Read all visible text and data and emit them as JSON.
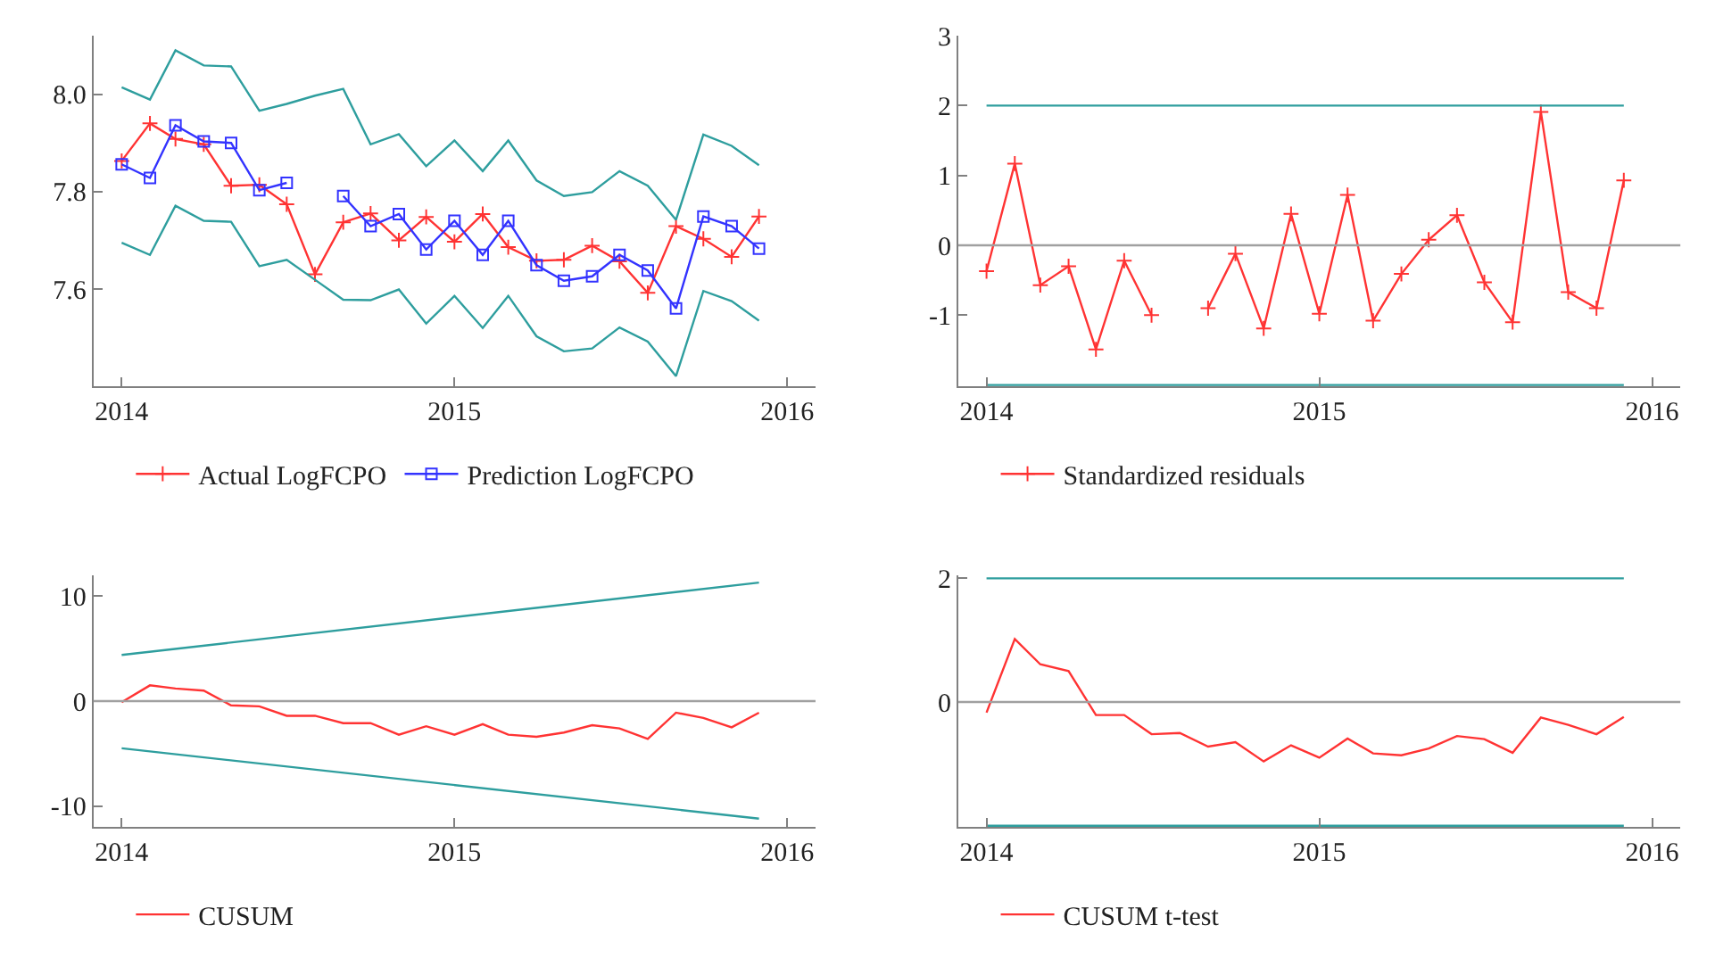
{
  "chart_data": [
    {
      "type": "line",
      "x": [
        "2014-01",
        "2014-02",
        "2014-03",
        "2014-04",
        "2014-05",
        "2014-06",
        "2014-07",
        "2014-08",
        "2014-09",
        "2014-10",
        "2014-11",
        "2014-12",
        "2015-01",
        "2015-02",
        "2015-03",
        "2015-04",
        "2015-05",
        "2015-06",
        "2015-07",
        "2015-08",
        "2015-09",
        "2015-10",
        "2015-11",
        "2015-12"
      ],
      "series": [
        {
          "name": "Actual LogFCPO",
          "color": "#ff3333",
          "marker": "cross",
          "values": [
            7.863,
            7.94,
            7.908,
            7.897,
            7.812,
            7.814,
            7.774,
            7.63,
            7.737,
            7.755,
            7.7,
            7.748,
            7.697,
            7.754,
            7.686,
            7.658,
            7.66,
            7.689,
            7.657,
            7.592,
            7.729,
            7.703,
            7.666,
            7.749
          ]
        },
        {
          "name": "Prediction LogFCPO",
          "color": "#3333ff",
          "marker": "square",
          "values": [
            7.856,
            7.828,
            7.936,
            7.903,
            7.9,
            7.803,
            7.818,
            null,
            7.791,
            7.729,
            7.754,
            7.681,
            7.74,
            7.67,
            7.74,
            7.649,
            7.617,
            7.626,
            7.67,
            7.638,
            7.56,
            7.749,
            7.729,
            7.683
          ]
        },
        {
          "color": "#2e9e9e",
          "values": [
            8.014,
            7.989,
            8.09,
            8.059,
            8.057,
            7.966,
            7.98,
            7.997,
            8.011,
            7.897,
            7.918,
            7.852,
            7.905,
            7.842,
            7.905,
            7.823,
            7.791,
            7.799,
            7.842,
            7.812,
            7.742,
            7.917,
            7.894,
            7.854
          ]
        },
        {
          "color": "#2e9e9e",
          "values": [
            7.695,
            7.67,
            7.771,
            7.74,
            7.738,
            7.647,
            7.66,
            7.619,
            7.578,
            7.577,
            7.599,
            7.529,
            7.586,
            7.52,
            7.586,
            7.503,
            7.472,
            7.478,
            7.521,
            7.492,
            7.421,
            7.596,
            7.575,
            7.535
          ]
        }
      ],
      "xlim": [
        "2013-12",
        "2016-02"
      ],
      "xticks": [
        "2014",
        "2015",
        "2016"
      ],
      "ylim": [
        7.4,
        8.12
      ],
      "yticks": [
        7.6,
        7.8,
        {
          "value": 8,
          "label": "8.0"
        }
      ],
      "legend": "bottom"
    },
    {
      "type": "line",
      "x": [
        "2014-01",
        "2014-02",
        "2014-03",
        "2014-04",
        "2014-05",
        "2014-06",
        "2014-07",
        "2014-08",
        "2014-09",
        "2014-10",
        "2014-11",
        "2014-12",
        "2015-01",
        "2015-02",
        "2015-03",
        "2015-04",
        "2015-05",
        "2015-06",
        "2015-07",
        "2015-08",
        "2015-09",
        "2015-10",
        "2015-11",
        "2015-12"
      ],
      "series": [
        {
          "name": "Standardized residuals",
          "color": "#ff3333",
          "marker": "cross",
          "values": [
            -0.37,
            1.17,
            -0.57,
            -0.3,
            -1.49,
            -0.22,
            -1.0,
            null,
            -0.9,
            -0.12,
            -1.19,
            0.45,
            -0.98,
            0.72,
            -1.08,
            -0.41,
            0.08,
            0.43,
            -0.53,
            -1.1,
            1.91,
            -0.67,
            -0.9,
            0.93
          ]
        },
        {
          "color": "#2e9e9e",
          "x": [
            "2014-01",
            "2015-12"
          ],
          "values": [
            2,
            2
          ]
        },
        {
          "color": "#2e9e9e",
          "x": [
            "2014-01",
            "2015-12"
          ],
          "values": [
            -2,
            -2
          ]
        }
      ],
      "ref_lines": [
        {
          "axis": "y",
          "value": 0,
          "color": "#a0a0a0"
        }
      ],
      "xlim": [
        "2013-12",
        "2016-02"
      ],
      "xticks": [
        "2014",
        "2015",
        "2016"
      ],
      "ylim": [
        -2.02,
        3
      ],
      "yticks": [
        -1,
        0,
        1,
        2,
        3
      ],
      "legend": "bottom"
    },
    {
      "type": "line",
      "x": [
        "2014-01",
        "2014-02",
        "2014-03",
        "2014-04",
        "2014-05",
        "2014-06",
        "2014-07",
        "2014-08",
        "2014-09",
        "2014-10",
        "2014-11",
        "2014-12",
        "2015-01",
        "2015-02",
        "2015-03",
        "2015-04",
        "2015-05",
        "2015-06",
        "2015-07",
        "2015-08",
        "2015-09",
        "2015-10",
        "2015-11",
        "2015-12"
      ],
      "series": [
        {
          "name": "CUSUM",
          "color": "#ff3333",
          "marker": "none",
          "values": [
            -0.1,
            1.5,
            1.2,
            1.0,
            -0.4,
            -0.5,
            -1.4,
            -1.4,
            -2.1,
            -2.1,
            -3.2,
            -2.4,
            -3.2,
            -2.2,
            -3.2,
            -3.4,
            -3.0,
            -2.3,
            -2.6,
            -3.6,
            -1.1,
            -1.6,
            -2.5,
            -1.1
          ]
        },
        {
          "color": "#2e9e9e",
          "x": [
            "2014-01",
            "2015-12"
          ],
          "values": [
            4.4,
            11.3
          ]
        },
        {
          "color": "#2e9e9e",
          "x": [
            "2014-01",
            "2015-12"
          ],
          "values": [
            -4.5,
            -11.2
          ]
        }
      ],
      "ref_lines": [
        {
          "axis": "y",
          "value": 0,
          "color": "#a0a0a0"
        }
      ],
      "xlim": [
        "2013-12",
        "2016-02"
      ],
      "xticks": [
        "2014",
        "2015",
        "2016"
      ],
      "ylim": [
        -12,
        12
      ],
      "yticks": [
        -10,
        0,
        10
      ],
      "legend": "bottom"
    },
    {
      "type": "line",
      "x": [
        "2014-01",
        "2014-02",
        "2014-03",
        "2014-04",
        "2014-05",
        "2014-06",
        "2014-07",
        "2014-08",
        "2014-09",
        "2014-10",
        "2014-11",
        "2014-12",
        "2015-01",
        "2015-02",
        "2015-03",
        "2015-04",
        "2015-05",
        "2015-06",
        "2015-07",
        "2015-08",
        "2015-09",
        "2015-10",
        "2015-11",
        "2015-12"
      ],
      "series": [
        {
          "name": "CUSUM t-test",
          "color": "#ff3333",
          "marker": "none",
          "values": [
            -0.17,
            1.02,
            0.61,
            0.5,
            -0.21,
            -0.21,
            -0.52,
            -0.5,
            -0.72,
            -0.65,
            -0.96,
            -0.7,
            -0.9,
            -0.59,
            -0.83,
            -0.86,
            -0.75,
            -0.55,
            -0.6,
            -0.82,
            -0.25,
            -0.37,
            -0.52,
            -0.24
          ]
        },
        {
          "color": "#2e9e9e",
          "x": [
            "2014-01",
            "2015-12"
          ],
          "values": [
            2,
            2
          ]
        },
        {
          "color": "#2e9e9e",
          "x": [
            "2014-01",
            "2015-12"
          ],
          "values": [
            -2,
            -2
          ]
        }
      ],
      "ref_lines": [
        {
          "axis": "y",
          "value": 0,
          "color": "#a0a0a0"
        }
      ],
      "xlim": [
        "2013-12",
        "2016-02"
      ],
      "xticks": [
        "2014",
        "2015",
        "2016"
      ],
      "ylim": [
        -2.02,
        2.05
      ],
      "yticks": [
        0,
        2
      ],
      "legend": "bottom"
    }
  ]
}
